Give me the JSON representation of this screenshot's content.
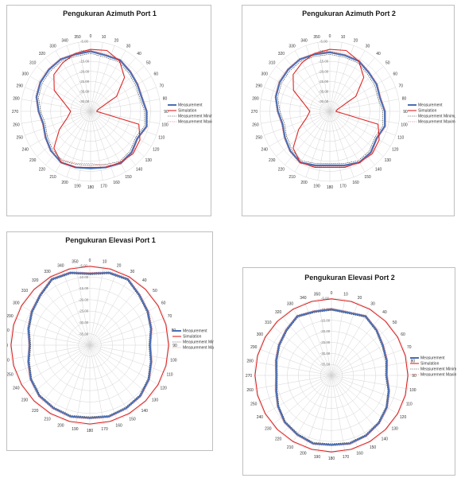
{
  "chart_data": [
    {
      "type": "polar-line",
      "title": "Pengukuran Azimuth Port 1",
      "angle_ticks": [
        0,
        10,
        20,
        30,
        40,
        50,
        60,
        70,
        80,
        90,
        100,
        110,
        120,
        130,
        140,
        150,
        160,
        170,
        180,
        190,
        200,
        210,
        220,
        230,
        240,
        250,
        260,
        270,
        280,
        290,
        300,
        310,
        320,
        330,
        340,
        350
      ],
      "radial_ticks": [
        "-35.00",
        "-30.00",
        "-25.00",
        "-20.00",
        "-15.00",
        "-10.00",
        "-5.00"
      ],
      "rlim": [
        -40,
        -5
      ],
      "legend": [
        "Measurement",
        "Simulation",
        "Measurement Minimum",
        "Measurement Maximum"
      ],
      "legend_position": "right",
      "series": [
        {
          "name": "Measurement",
          "color": "#4a6fb5",
          "angles": [
            0,
            15,
            30,
            45,
            60,
            75,
            90,
            105,
            120,
            135,
            150,
            165,
            180,
            195,
            210,
            225,
            240,
            255,
            270,
            285,
            300,
            315,
            330,
            345
          ],
          "values": [
            -10,
            -11,
            -10.5,
            -12,
            -13,
            -13.5,
            -12,
            -11,
            -13,
            -11,
            -10,
            -11,
            -11.5,
            -11,
            -10.5,
            -12,
            -14,
            -15.5,
            -14,
            -12,
            -11,
            -10.5,
            -10,
            -10.5
          ]
        },
        {
          "name": "Simulation",
          "color": "#e02424",
          "angles": [
            0,
            15,
            30,
            45,
            60,
            75,
            90,
            105,
            120,
            135,
            150,
            165,
            180,
            195,
            210,
            225,
            240,
            255,
            270,
            285,
            300,
            315,
            330,
            345
          ],
          "values": [
            -9,
            -8.5,
            -11,
            -16,
            -25,
            -36,
            -37,
            -15,
            -11.5,
            -10,
            -10.5,
            -11,
            -12,
            -11,
            -10.5,
            -14,
            -22,
            -28,
            -30,
            -27,
            -19,
            -14,
            -12,
            -10
          ]
        },
        {
          "name": "Measurement Minimum",
          "color": "#333333",
          "angles": [
            0,
            15,
            30,
            45,
            60,
            75,
            90,
            105,
            120,
            135,
            150,
            165,
            180,
            195,
            210,
            225,
            240,
            255,
            270,
            285,
            300,
            315,
            330,
            345
          ],
          "values": [
            -11,
            -12,
            -11.5,
            -13,
            -14,
            -14.5,
            -13,
            -12,
            -14,
            -12,
            -11,
            -12.5,
            -13,
            -12.5,
            -11.5,
            -13,
            -15,
            -16.5,
            -15,
            -13,
            -12,
            -11.5,
            -11,
            -11.5
          ]
        },
        {
          "name": "Measurement Maximum",
          "color": "#e06060",
          "angles": [
            0,
            15,
            30,
            45,
            60,
            75,
            90,
            105,
            120,
            135,
            150,
            165,
            180,
            195,
            210,
            225,
            240,
            255,
            270,
            285,
            300,
            315,
            330,
            345
          ],
          "values": [
            -9.5,
            -10.5,
            -10,
            -11.5,
            -12.5,
            -13,
            -11.5,
            -10.5,
            -12.5,
            -10.5,
            -9.5,
            -12,
            -14,
            -13,
            -12,
            -11.5,
            -13.5,
            -15,
            -13.5,
            -11.5,
            -10.5,
            -10,
            -9.5,
            -10
          ]
        }
      ]
    },
    {
      "type": "polar-line",
      "title": "Pengukuran Azimuth Port 2",
      "angle_ticks": [
        0,
        10,
        20,
        30,
        40,
        50,
        60,
        70,
        80,
        90,
        100,
        110,
        120,
        130,
        140,
        150,
        160,
        170,
        180,
        190,
        200,
        210,
        220,
        230,
        240,
        250,
        260,
        270,
        280,
        290,
        300,
        310,
        320,
        330,
        340,
        350
      ],
      "radial_ticks": [
        "-35.00",
        "-30.00",
        "-25.00",
        "-20.00",
        "-15.00",
        "-10.00",
        "-5.00"
      ],
      "rlim": [
        -40,
        -5
      ],
      "legend": [
        "Measurement",
        "Simulation",
        "Measurement Minimum",
        "Measurement Maximum"
      ],
      "legend_position": "right",
      "series": [
        {
          "name": "Measurement",
          "color": "#4a6fb5",
          "angles": [
            0,
            15,
            30,
            45,
            60,
            75,
            90,
            105,
            120,
            135,
            150,
            165,
            180,
            195,
            210,
            225,
            240,
            255,
            270,
            285,
            300,
            315,
            330,
            345
          ],
          "values": [
            -10.5,
            -11,
            -11,
            -12.5,
            -13,
            -14,
            -12.5,
            -11.5,
            -13,
            -11,
            -10.5,
            -12,
            -13,
            -12,
            -10.5,
            -12,
            -14,
            -15.5,
            -14,
            -12,
            -11,
            -10.5,
            -10,
            -10.5
          ]
        },
        {
          "name": "Simulation",
          "color": "#e02424",
          "angles": [
            0,
            15,
            30,
            45,
            60,
            75,
            90,
            105,
            120,
            135,
            150,
            165,
            180,
            195,
            210,
            225,
            240,
            255,
            270,
            285,
            300,
            315,
            330,
            345
          ],
          "values": [
            -9,
            -8.5,
            -11,
            -16,
            -25,
            -36,
            -37,
            -15,
            -11.5,
            -10,
            -10.5,
            -11,
            -12,
            -11,
            -10.5,
            -14,
            -22,
            -28,
            -30,
            -27,
            -19,
            -14,
            -12,
            -10
          ]
        },
        {
          "name": "Measurement Minimum",
          "color": "#333333",
          "angles": [
            0,
            15,
            30,
            45,
            60,
            75,
            90,
            105,
            120,
            135,
            150,
            165,
            180,
            195,
            210,
            225,
            240,
            255,
            270,
            285,
            300,
            315,
            330,
            345
          ],
          "values": [
            -11.5,
            -12,
            -12,
            -13.5,
            -14,
            -15,
            -13.5,
            -12.5,
            -14,
            -12,
            -11.5,
            -13,
            -14,
            -13,
            -11.5,
            -13,
            -15,
            -16.5,
            -15,
            -13,
            -12,
            -11.5,
            -11,
            -11.5
          ]
        },
        {
          "name": "Measurement Maximum",
          "color": "#e06060",
          "angles": [
            0,
            15,
            30,
            45,
            60,
            75,
            90,
            105,
            120,
            135,
            150,
            165,
            180,
            195,
            210,
            225,
            240,
            255,
            270,
            285,
            300,
            315,
            330,
            345
          ],
          "values": [
            -10,
            -10.5,
            -10.5,
            -12,
            -12.5,
            -13.5,
            -12,
            -11,
            -12.5,
            -10.5,
            -10,
            -11.5,
            -12.5,
            -11.5,
            -10,
            -11.5,
            -13.5,
            -15,
            -13.5,
            -11.5,
            -10.5,
            -10,
            -9.5,
            -10
          ]
        }
      ]
    },
    {
      "type": "polar-line",
      "title": "Pengukuran Elevasi Port 1",
      "angle_ticks": [
        0,
        10,
        20,
        30,
        40,
        50,
        60,
        70,
        80,
        90,
        100,
        110,
        120,
        130,
        140,
        150,
        160,
        170,
        180,
        190,
        200,
        210,
        220,
        230,
        240,
        250,
        260,
        270,
        280,
        290,
        300,
        310,
        320,
        330,
        340,
        350
      ],
      "radial_ticks": [
        "-35.00",
        "-30.00",
        "-25.00",
        "-20.00",
        "-15.00",
        "-10.00",
        "-5.00"
      ],
      "rlim": [
        -40,
        -5
      ],
      "legend": [
        "Measurement",
        "Simulation",
        "Measurement Minimum",
        "Measurement Maximum"
      ],
      "legend_position": "right",
      "series": [
        {
          "name": "Measurement",
          "color": "#4a6fb5",
          "angles": [
            0,
            15,
            30,
            45,
            60,
            75,
            90,
            105,
            120,
            135,
            150,
            165,
            180,
            195,
            210,
            225,
            240,
            255,
            270,
            285,
            300,
            315,
            330,
            345
          ],
          "values": [
            -8.5,
            -7,
            -6.5,
            -9,
            -10.5,
            -12,
            -13.5,
            -12,
            -10,
            -8.5,
            -8,
            -7.5,
            -8,
            -7.5,
            -8,
            -8.5,
            -10,
            -12,
            -13.5,
            -12,
            -10.5,
            -9,
            -6.5,
            -7
          ]
        },
        {
          "name": "Simulation",
          "color": "#e02424",
          "angles": [
            0,
            15,
            30,
            45,
            60,
            75,
            90,
            105,
            120,
            135,
            150,
            165,
            180,
            195,
            210,
            225,
            240,
            255,
            270,
            285,
            300,
            315,
            330,
            345
          ],
          "values": [
            -5.3,
            -5.3,
            -5.3,
            -5.3,
            -5.3,
            -5.3,
            -5.3,
            -5.3,
            -5.3,
            -5.3,
            -5.3,
            -5.3,
            -5.3,
            -5.3,
            -5.3,
            -5.3,
            -5.3,
            -5.3,
            -5.3,
            -5.3,
            -5.3,
            -5.3,
            -5.3,
            -5.3
          ]
        },
        {
          "name": "Measurement Minimum",
          "color": "#333333",
          "angles": [
            0,
            15,
            30,
            45,
            60,
            75,
            90,
            105,
            120,
            135,
            150,
            165,
            180,
            195,
            210,
            225,
            240,
            255,
            270,
            285,
            300,
            315,
            330,
            345
          ],
          "values": [
            -9,
            -7.5,
            -7,
            -9.5,
            -11,
            -12.5,
            -14,
            -12.5,
            -10.5,
            -9,
            -8.5,
            -8,
            -8.5,
            -8,
            -8.5,
            -9,
            -10.5,
            -12.5,
            -14,
            -12.5,
            -11,
            -9.5,
            -7,
            -7.5
          ]
        },
        {
          "name": "Measurement Maximum",
          "color": "#e06060",
          "angles": [
            0,
            15,
            30,
            45,
            60,
            75,
            90,
            105,
            120,
            135,
            150,
            165,
            180,
            195,
            210,
            225,
            240,
            255,
            270,
            285,
            300,
            315,
            330,
            345
          ],
          "values": [
            -8,
            -6.5,
            -6,
            -8.5,
            -10,
            -11.5,
            -13,
            -11.5,
            -9.5,
            -8,
            -7.5,
            -7,
            -7.5,
            -7,
            -7.5,
            -8,
            -9.5,
            -11.5,
            -13,
            -11.5,
            -10,
            -8.5,
            -6,
            -6.5
          ]
        }
      ]
    },
    {
      "type": "polar-line",
      "title": "Pengukuran Elevasi Port 2",
      "angle_ticks": [
        0,
        10,
        20,
        30,
        40,
        50,
        60,
        70,
        80,
        90,
        100,
        110,
        120,
        130,
        140,
        150,
        160,
        170,
        180,
        190,
        200,
        210,
        220,
        230,
        240,
        250,
        260,
        270,
        280,
        290,
        300,
        310,
        320,
        330,
        340,
        350
      ],
      "radial_ticks": [
        "-35.00",
        "-30.00",
        "-25.00",
        "-20.00",
        "-15.00",
        "-10.00",
        "-5.00"
      ],
      "rlim": [
        -40,
        -5
      ],
      "legend": [
        "Measurement",
        "Simulation",
        "Measurement Minimum",
        "Measurement Maximum"
      ],
      "legend_position": "right",
      "series": [
        {
          "name": "Measurement",
          "color": "#4a6fb5",
          "angles": [
            0,
            15,
            30,
            45,
            60,
            75,
            90,
            105,
            120,
            135,
            150,
            165,
            180,
            195,
            210,
            225,
            240,
            255,
            270,
            285,
            300,
            315,
            330,
            345
          ],
          "values": [
            -10,
            -10.5,
            -9,
            -11,
            -13,
            -14,
            -15,
            -13,
            -11,
            -9.5,
            -8.5,
            -8,
            -8.5,
            -8,
            -9,
            -10,
            -12,
            -14,
            -15,
            -14,
            -12.5,
            -11,
            -9,
            -10
          ]
        },
        {
          "name": "Simulation",
          "color": "#e02424",
          "angles": [
            0,
            15,
            30,
            45,
            60,
            75,
            90,
            105,
            120,
            135,
            150,
            165,
            180,
            195,
            210,
            225,
            240,
            255,
            270,
            285,
            300,
            315,
            330,
            345
          ],
          "values": [
            -5.3,
            -5.3,
            -5.3,
            -5.3,
            -5.3,
            -5.3,
            -5.3,
            -5.3,
            -5.3,
            -5.3,
            -5.3,
            -5.3,
            -5.3,
            -5.3,
            -5.3,
            -5.3,
            -5.3,
            -5.3,
            -5.3,
            -5.3,
            -5.3,
            -5.3,
            -5.3,
            -5.3
          ]
        },
        {
          "name": "Measurement Minimum",
          "color": "#333333",
          "angles": [
            0,
            15,
            30,
            45,
            60,
            75,
            90,
            105,
            120,
            135,
            150,
            165,
            180,
            195,
            210,
            225,
            240,
            255,
            270,
            285,
            300,
            315,
            330,
            345
          ],
          "values": [
            -10.5,
            -11,
            -9.5,
            -11.5,
            -13.5,
            -14.5,
            -15.5,
            -13.5,
            -11.5,
            -10,
            -9,
            -8.5,
            -9,
            -8.5,
            -9.5,
            -10.5,
            -12.5,
            -14.5,
            -15.5,
            -14.5,
            -13,
            -11.5,
            -9.5,
            -10.5
          ]
        },
        {
          "name": "Measurement Maximum",
          "color": "#e06060",
          "angles": [
            0,
            15,
            30,
            45,
            60,
            75,
            90,
            105,
            120,
            135,
            150,
            165,
            180,
            195,
            210,
            225,
            240,
            255,
            270,
            285,
            300,
            315,
            330,
            345
          ],
          "values": [
            -9.5,
            -10,
            -8.5,
            -10.5,
            -12.5,
            -13.5,
            -14.5,
            -12.5,
            -10.5,
            -9,
            -8,
            -7.5,
            -8,
            -7.5,
            -8.5,
            -9.5,
            -11.5,
            -13.5,
            -14.5,
            -13.5,
            -12,
            -10.5,
            -8.5,
            -9.5
          ]
        }
      ]
    }
  ]
}
